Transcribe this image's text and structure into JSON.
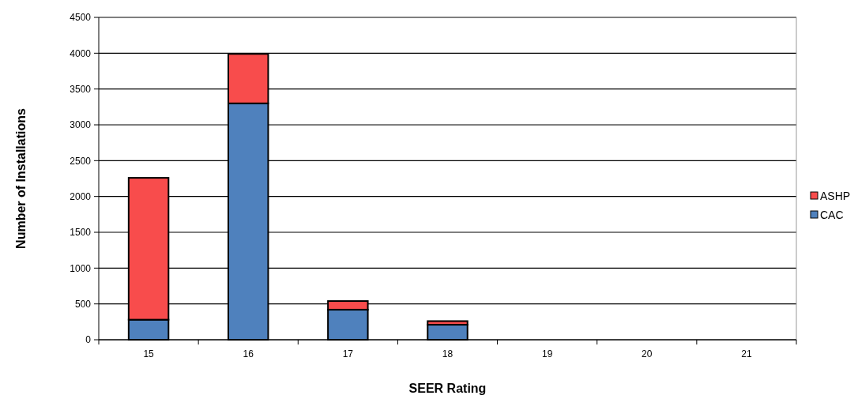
{
  "chart_data": {
    "type": "bar",
    "stacked": true,
    "xlabel": "SEER Rating",
    "ylabel": "Number of Installations",
    "categories": [
      "15",
      "16",
      "17",
      "18",
      "19",
      "20",
      "21"
    ],
    "series": [
      {
        "name": "CAC",
        "color": "#4f81bd",
        "values": [
          280,
          3300,
          420,
          210,
          0,
          0,
          0
        ]
      },
      {
        "name": "ASHP",
        "color": "#f84c4c",
        "values": [
          1980,
          690,
          120,
          50,
          0,
          0,
          0
        ]
      }
    ],
    "ylim": [
      0,
      4500
    ],
    "yticks": [
      0,
      500,
      1000,
      1500,
      2000,
      2500,
      3000,
      3500,
      4000,
      4500
    ],
    "grid": "y",
    "legend": "right"
  }
}
